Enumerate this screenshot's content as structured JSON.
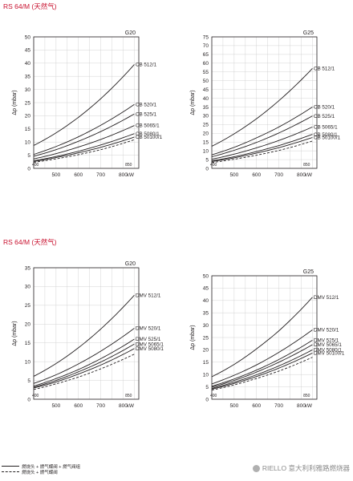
{
  "sections": [
    {
      "title": "RS 64/M (天然气)"
    },
    {
      "title": "RS 64/M (天然气)"
    }
  ],
  "legend": [
    {
      "label": "燃烧头 + 燃气蝶阀 + 燃气阀组",
      "style": "solid"
    },
    {
      "label": "燃烧头 + 燃气蝶阀",
      "style": "dashed"
    }
  ],
  "watermark": {
    "text": "RIELLO 意大利利雅路燃烧器"
  },
  "chart_data": [
    {
      "type": "line",
      "title": "G20",
      "xlabel": "kW",
      "ylabel": "Δp (mbar)",
      "xlim": [
        400,
        870
      ],
      "ylim": [
        0,
        50
      ],
      "xticks": [
        500,
        600,
        700,
        800
      ],
      "yticks": [
        0,
        5,
        10,
        15,
        20,
        25,
        30,
        35,
        40,
        45,
        50
      ],
      "range_labels": [
        {
          "x": 400,
          "label": "400"
        },
        {
          "x": 850,
          "label": "850"
        }
      ],
      "grid": true,
      "series": [
        {
          "name": "CB 512/1",
          "style": "solid",
          "x": [
            400,
            500,
            600,
            700,
            850
          ],
          "y": [
            8.7,
            13.5,
            19.4,
            26.5,
            39.5
          ]
        },
        {
          "name": "CB 520/1",
          "style": "solid",
          "x": [
            400,
            500,
            600,
            700,
            850
          ],
          "y": [
            5.3,
            8.3,
            12.0,
            16.4,
            24.3
          ]
        },
        {
          "name": "CB 525/1",
          "style": "solid",
          "x": [
            400,
            500,
            600,
            700,
            850
          ],
          "y": [
            4.6,
            7.1,
            10.3,
            14.0,
            20.7
          ]
        },
        {
          "name": "CB 5065/1",
          "style": "solid",
          "x": [
            400,
            500,
            600,
            700,
            850
          ],
          "y": [
            3.6,
            5.6,
            8.1,
            11.0,
            16.3
          ]
        },
        {
          "name": "CB 5080/1",
          "style": "solid",
          "x": [
            400,
            500,
            600,
            700,
            850
          ],
          "y": [
            2.9,
            4.5,
            6.5,
            8.9,
            13.2
          ]
        },
        {
          "name": "CB 50100/1",
          "style": "solid",
          "x": [
            400,
            500,
            600,
            700,
            850
          ],
          "y": [
            2.6,
            4.1,
            5.9,
            8.0,
            11.9
          ]
        },
        {
          "name": "",
          "style": "dashed",
          "x": [
            400,
            500,
            600,
            700,
            850
          ],
          "y": [
            2.3,
            3.6,
            5.2,
            7.1,
            10.9
          ]
        }
      ]
    },
    {
      "type": "line",
      "title": "G25",
      "xlabel": "kW",
      "ylabel": "Δp (mbar)",
      "xlim": [
        400,
        870
      ],
      "ylim": [
        0,
        75
      ],
      "xticks": [
        500,
        600,
        700,
        800
      ],
      "yticks": [
        0,
        5,
        10,
        15,
        20,
        25,
        30,
        35,
        40,
        45,
        50,
        55,
        60,
        65,
        70,
        75
      ],
      "range_labels": [
        {
          "x": 400,
          "label": "400"
        },
        {
          "x": 850,
          "label": "850"
        }
      ],
      "grid": true,
      "series": [
        {
          "name": "CB 512/1",
          "style": "solid",
          "x": [
            400,
            500,
            600,
            700,
            850
          ],
          "y": [
            12.6,
            19.7,
            28.3,
            38.6,
            57.0
          ]
        },
        {
          "name": "CB 520/1",
          "style": "solid",
          "x": [
            400,
            500,
            600,
            700,
            850
          ],
          "y": [
            7.7,
            12.0,
            17.4,
            23.6,
            35.0
          ]
        },
        {
          "name": "CB 525/1",
          "style": "solid",
          "x": [
            400,
            500,
            600,
            700,
            850
          ],
          "y": [
            6.6,
            10.3,
            14.8,
            20.2,
            29.9
          ]
        },
        {
          "name": "CB 5065/1",
          "style": "solid",
          "x": [
            400,
            500,
            600,
            700,
            850
          ],
          "y": [
            5.2,
            8.1,
            11.7,
            15.9,
            23.6
          ]
        },
        {
          "name": "CB 5080/1",
          "style": "solid",
          "x": [
            400,
            500,
            600,
            700,
            850
          ],
          "y": [
            4.3,
            6.6,
            9.6,
            13.0,
            19.4
          ]
        },
        {
          "name": "CB 50100/1",
          "style": "solid",
          "x": [
            400,
            500,
            600,
            700,
            850
          ],
          "y": [
            3.9,
            6.0,
            8.7,
            11.8,
            17.6
          ]
        },
        {
          "name": "",
          "style": "dashed",
          "x": [
            400,
            500,
            600,
            700,
            850
          ],
          "y": [
            3.3,
            5.2,
            7.5,
            10.2,
            15.6
          ]
        }
      ]
    },
    {
      "type": "line",
      "title": "G20",
      "xlabel": "kW",
      "ylabel": "Δp (mbar)",
      "xlim": [
        400,
        870
      ],
      "ylim": [
        0,
        35
      ],
      "xticks": [
        500,
        600,
        700,
        800
      ],
      "yticks": [
        0,
        5,
        10,
        15,
        20,
        25,
        30,
        35
      ],
      "range_labels": [
        {
          "x": 400,
          "label": "400"
        },
        {
          "x": 850,
          "label": "850"
        }
      ],
      "grid": true,
      "series": [
        {
          "name": "DMV 512/1",
          "style": "solid",
          "x": [
            400,
            500,
            600,
            700,
            850
          ],
          "y": [
            6.1,
            9.5,
            13.7,
            18.7,
            27.7
          ]
        },
        {
          "name": "DMV 520/1",
          "style": "solid",
          "x": [
            400,
            500,
            600,
            700,
            850
          ],
          "y": [
            4.2,
            6.5,
            9.4,
            12.8,
            18.9
          ]
        },
        {
          "name": "DMV 525/1",
          "style": "solid",
          "x": [
            400,
            500,
            600,
            700,
            850
          ],
          "y": [
            3.5,
            5.5,
            7.9,
            10.8,
            16.0
          ]
        },
        {
          "name": "DMV 5065/1",
          "style": "solid",
          "x": [
            400,
            500,
            600,
            700,
            850
          ],
          "y": [
            3.2,
            5.0,
            7.3,
            9.9,
            14.7
          ]
        },
        {
          "name": "DMV 5080/1",
          "style": "solid",
          "x": [
            400,
            500,
            600,
            700,
            850
          ],
          "y": [
            3.0,
            4.6,
            6.7,
            9.1,
            13.5
          ]
        },
        {
          "name": "",
          "style": "dashed",
          "x": [
            400,
            500,
            600,
            700,
            850
          ],
          "y": [
            2.6,
            4.1,
            5.9,
            8.1,
            12.0
          ]
        }
      ]
    },
    {
      "type": "line",
      "title": "G25",
      "xlabel": "kW",
      "ylabel": "Δp (mbar)",
      "xlim": [
        400,
        870
      ],
      "ylim": [
        0,
        50
      ],
      "xticks": [
        500,
        600,
        700,
        800
      ],
      "yticks": [
        0,
        5,
        10,
        15,
        20,
        25,
        30,
        35,
        40,
        45,
        50
      ],
      "range_labels": [
        {
          "x": 400,
          "label": "400"
        },
        {
          "x": 850,
          "label": "850"
        }
      ],
      "grid": true,
      "series": [
        {
          "name": "DMV 512/1",
          "style": "solid",
          "x": [
            400,
            500,
            600,
            700,
            850
          ],
          "y": [
            9.1,
            14.1,
            20.4,
            27.7,
            41.3
          ]
        },
        {
          "name": "DMV 520/1",
          "style": "solid",
          "x": [
            400,
            500,
            600,
            700,
            850
          ],
          "y": [
            6.2,
            9.7,
            13.9,
            19.0,
            28.1
          ]
        },
        {
          "name": "DMV 525/1",
          "style": "solid",
          "x": [
            400,
            500,
            600,
            700,
            850
          ],
          "y": [
            5.3,
            8.2,
            11.8,
            16.1,
            23.9
          ]
        },
        {
          "name": "DMV 5065/1",
          "style": "solid",
          "x": [
            400,
            500,
            600,
            700,
            850
          ],
          "y": [
            4.9,
            7.6,
            11.0,
            15.0,
            22.1
          ]
        },
        {
          "name": "DMV 5080/1",
          "style": "solid",
          "x": [
            400,
            500,
            600,
            700,
            850
          ],
          "y": [
            4.4,
            6.9,
            9.9,
            13.5,
            20.0
          ]
        },
        {
          "name": "DMV 50100/1",
          "style": "solid",
          "x": [
            400,
            500,
            600,
            700,
            850
          ],
          "y": [
            4.1,
            6.4,
            9.2,
            12.6,
            18.7
          ]
        },
        {
          "name": "",
          "style": "dashed",
          "x": [
            400,
            500,
            600,
            700,
            850
          ],
          "y": [
            3.7,
            5.8,
            8.4,
            11.4,
            17.0
          ]
        }
      ]
    }
  ]
}
